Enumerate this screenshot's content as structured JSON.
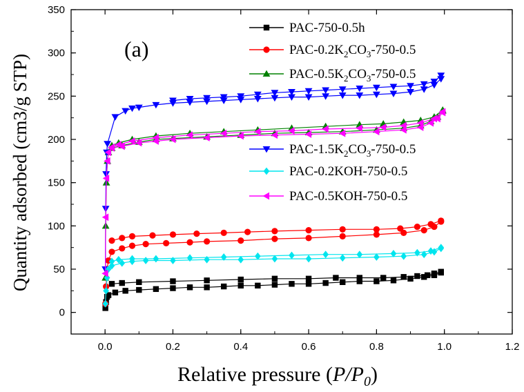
{
  "chart_data": {
    "type": "line",
    "panel_label": "(a)",
    "xlabel": "Relative pressure (P/P0)",
    "xlabel_parts": {
      "main": "Relative pressure (",
      "p": "P",
      "slash": "/",
      "p0": "P",
      "sub": "0",
      "close": ")"
    },
    "ylabel": "Quantity adsorbed (cm3/g STP)",
    "xlim": [
      -0.1,
      1.2
    ],
    "ylim": [
      -25,
      350
    ],
    "xticks": [
      0.0,
      0.2,
      0.4,
      0.6,
      0.8,
      1.0,
      1.2
    ],
    "xtick_labels": [
      "0.0",
      "0.2",
      "0.4",
      "0.6",
      "0.8",
      "1.0",
      "1.2"
    ],
    "yticks": [
      0,
      50,
      100,
      150,
      200,
      250,
      300,
      350
    ],
    "ytick_labels": [
      "0",
      "50",
      "100",
      "150",
      "200",
      "250",
      "300",
      "350"
    ],
    "grid": false,
    "legend_position": "top-right",
    "series": [
      {
        "name": "PAC-750-0.5h",
        "legend_parts": {
          "a": "PAC-750-0.5h"
        },
        "color": "#000000",
        "marker": "square",
        "adsorption": [
          [
            0.001,
            5
          ],
          [
            0.003,
            12
          ],
          [
            0.006,
            18
          ],
          [
            0.01,
            20
          ],
          [
            0.03,
            23
          ],
          [
            0.06,
            25
          ],
          [
            0.1,
            26
          ],
          [
            0.15,
            27
          ],
          [
            0.2,
            28
          ],
          [
            0.25,
            29
          ],
          [
            0.3,
            29
          ],
          [
            0.35,
            30
          ],
          [
            0.4,
            31
          ],
          [
            0.45,
            31
          ],
          [
            0.5,
            32
          ],
          [
            0.55,
            33
          ],
          [
            0.6,
            33
          ],
          [
            0.65,
            34
          ],
          [
            0.7,
            35
          ],
          [
            0.75,
            36
          ],
          [
            0.8,
            36
          ],
          [
            0.85,
            37
          ],
          [
            0.9,
            39
          ],
          [
            0.94,
            41
          ],
          [
            0.97,
            43
          ],
          [
            0.99,
            46
          ]
        ],
        "desorption": [
          [
            0.99,
            47
          ],
          [
            0.97,
            45
          ],
          [
            0.95,
            43
          ],
          [
            0.92,
            42
          ],
          [
            0.88,
            41
          ],
          [
            0.82,
            40
          ],
          [
            0.75,
            40
          ],
          [
            0.68,
            40
          ],
          [
            0.6,
            39
          ],
          [
            0.5,
            39
          ],
          [
            0.4,
            38
          ],
          [
            0.3,
            37
          ],
          [
            0.2,
            36
          ],
          [
            0.1,
            35
          ],
          [
            0.05,
            34
          ],
          [
            0.02,
            33
          ]
        ]
      },
      {
        "name": "PAC-0.2K2CO3-750-0.5",
        "legend_parts": {
          "a": "PAC-0.2K",
          "sub1": "2",
          "b": "CO",
          "sub2": "3",
          "c": "-750-0.5"
        },
        "color": "#ff0000",
        "marker": "circle",
        "adsorption": [
          [
            0.001,
            10
          ],
          [
            0.003,
            30
          ],
          [
            0.006,
            50
          ],
          [
            0.01,
            60
          ],
          [
            0.02,
            70
          ],
          [
            0.05,
            74
          ],
          [
            0.08,
            77
          ],
          [
            0.12,
            79
          ],
          [
            0.18,
            80
          ],
          [
            0.25,
            81
          ],
          [
            0.3,
            82
          ],
          [
            0.4,
            83
          ],
          [
            0.5,
            85
          ],
          [
            0.6,
            86
          ],
          [
            0.7,
            88
          ],
          [
            0.8,
            90
          ],
          [
            0.88,
            92
          ],
          [
            0.94,
            95
          ],
          [
            0.97,
            99
          ],
          [
            0.99,
            105
          ]
        ],
        "desorption": [
          [
            0.99,
            106
          ],
          [
            0.96,
            102
          ],
          [
            0.92,
            99
          ],
          [
            0.87,
            97
          ],
          [
            0.8,
            96
          ],
          [
            0.7,
            96
          ],
          [
            0.6,
            95
          ],
          [
            0.5,
            94
          ],
          [
            0.42,
            93
          ],
          [
            0.35,
            92
          ],
          [
            0.27,
            91
          ],
          [
            0.2,
            90
          ],
          [
            0.14,
            89
          ],
          [
            0.08,
            88
          ],
          [
            0.05,
            86
          ],
          [
            0.02,
            83
          ]
        ]
      },
      {
        "name": "PAC-0.5K2CO3-750-0.5",
        "legend_parts": {
          "a": "PAC-0.5K",
          "sub1": "2",
          "b": "CO",
          "sub2": "3",
          "c": "-750-0.5"
        },
        "color": "#008000",
        "marker": "triangle-up",
        "adsorption": [
          [
            0.001,
            40
          ],
          [
            0.002,
            100
          ],
          [
            0.004,
            150
          ],
          [
            0.007,
            175
          ],
          [
            0.01,
            185
          ],
          [
            0.02,
            190
          ],
          [
            0.05,
            193
          ],
          [
            0.1,
            197
          ],
          [
            0.15,
            200
          ],
          [
            0.2,
            201
          ],
          [
            0.3,
            203
          ],
          [
            0.4,
            205
          ],
          [
            0.5,
            207
          ],
          [
            0.6,
            208
          ],
          [
            0.7,
            209
          ],
          [
            0.8,
            211
          ],
          [
            0.88,
            213
          ],
          [
            0.93,
            216
          ],
          [
            0.96,
            221
          ],
          [
            0.98,
            226
          ],
          [
            0.995,
            233
          ]
        ],
        "desorption": [
          [
            0.995,
            234
          ],
          [
            0.97,
            226
          ],
          [
            0.93,
            222
          ],
          [
            0.88,
            220
          ],
          [
            0.82,
            218
          ],
          [
            0.75,
            217
          ],
          [
            0.65,
            215
          ],
          [
            0.55,
            213
          ],
          [
            0.45,
            211
          ],
          [
            0.35,
            209
          ],
          [
            0.25,
            207
          ],
          [
            0.15,
            204
          ],
          [
            0.08,
            200
          ],
          [
            0.04,
            196
          ],
          [
            0.02,
            193
          ]
        ]
      },
      {
        "name": "PAC-1.5K2CO3-750-0.5",
        "legend_parts": {
          "a": "PAC-1.5K",
          "sub1": "2",
          "b": "CO",
          "sub2": "3",
          "c": "-750-0.5"
        },
        "color": "#0000ff",
        "marker": "triangle-down",
        "adsorption": [
          [
            0.001,
            50
          ],
          [
            0.002,
            120
          ],
          [
            0.003,
            160
          ],
          [
            0.005,
            185
          ],
          [
            0.007,
            195
          ],
          [
            0.03,
            226
          ],
          [
            0.06,
            233
          ],
          [
            0.08,
            236
          ],
          [
            0.1,
            237
          ],
          [
            0.15,
            240
          ],
          [
            0.2,
            242
          ],
          [
            0.25,
            243
          ],
          [
            0.3,
            244
          ],
          [
            0.35,
            245
          ],
          [
            0.4,
            246
          ],
          [
            0.45,
            247
          ],
          [
            0.5,
            248
          ],
          [
            0.55,
            249
          ],
          [
            0.6,
            249
          ],
          [
            0.65,
            250
          ],
          [
            0.7,
            251
          ],
          [
            0.75,
            251
          ],
          [
            0.8,
            252
          ],
          [
            0.85,
            253
          ],
          [
            0.9,
            255
          ],
          [
            0.94,
            258
          ],
          [
            0.97,
            263
          ],
          [
            0.99,
            270
          ]
        ],
        "desorption": [
          [
            0.99,
            274
          ],
          [
            0.97,
            267
          ],
          [
            0.94,
            264
          ],
          [
            0.9,
            262
          ],
          [
            0.85,
            261
          ],
          [
            0.8,
            260
          ],
          [
            0.75,
            259
          ],
          [
            0.7,
            258
          ],
          [
            0.65,
            257
          ],
          [
            0.6,
            256
          ],
          [
            0.55,
            255
          ],
          [
            0.5,
            254
          ],
          [
            0.45,
            252
          ],
          [
            0.4,
            250
          ],
          [
            0.35,
            249
          ],
          [
            0.3,
            248
          ],
          [
            0.25,
            247
          ],
          [
            0.2,
            245
          ]
        ]
      },
      {
        "name": "PAC-0.2KOH-750-0.5",
        "legend_parts": {
          "a": "PAC-0.2KOH-750-0.5"
        },
        "color": "#00e5ee",
        "marker": "diamond",
        "adsorption": [
          [
            0.001,
            10
          ],
          [
            0.003,
            25
          ],
          [
            0.006,
            40
          ],
          [
            0.01,
            50
          ],
          [
            0.02,
            54
          ],
          [
            0.05,
            57
          ],
          [
            0.08,
            59
          ],
          [
            0.12,
            60
          ],
          [
            0.2,
            60
          ],
          [
            0.3,
            61
          ],
          [
            0.4,
            61
          ],
          [
            0.5,
            62
          ],
          [
            0.6,
            62
          ],
          [
            0.7,
            63
          ],
          [
            0.8,
            64
          ],
          [
            0.88,
            65
          ],
          [
            0.94,
            67
          ],
          [
            0.97,
            70
          ],
          [
            0.99,
            74
          ]
        ],
        "desorption": [
          [
            0.99,
            75
          ],
          [
            0.96,
            71
          ],
          [
            0.92,
            69
          ],
          [
            0.85,
            68
          ],
          [
            0.75,
            67
          ],
          [
            0.65,
            67
          ],
          [
            0.55,
            66
          ],
          [
            0.45,
            65
          ],
          [
            0.35,
            64
          ],
          [
            0.25,
            63
          ],
          [
            0.15,
            62
          ],
          [
            0.08,
            62
          ],
          [
            0.04,
            61
          ],
          [
            0.02,
            59
          ]
        ]
      },
      {
        "name": "PAC-0.5KOH-750-0.5",
        "legend_parts": {
          "a": "PAC-0.5KOH-750-0.5"
        },
        "color": "#ff00ff",
        "marker": "triangle-left",
        "adsorption": [
          [
            0.001,
            45
          ],
          [
            0.002,
            110
          ],
          [
            0.004,
            155
          ],
          [
            0.007,
            175
          ],
          [
            0.01,
            185
          ],
          [
            0.02,
            190
          ],
          [
            0.05,
            192
          ],
          [
            0.1,
            196
          ],
          [
            0.15,
            198
          ],
          [
            0.2,
            200
          ],
          [
            0.3,
            202
          ],
          [
            0.4,
            204
          ],
          [
            0.5,
            205
          ],
          [
            0.6,
            206
          ],
          [
            0.7,
            207
          ],
          [
            0.8,
            209
          ],
          [
            0.88,
            211
          ],
          [
            0.93,
            214
          ],
          [
            0.96,
            219
          ],
          [
            0.98,
            224
          ],
          [
            0.995,
            231
          ]
        ],
        "desorption": [
          [
            0.995,
            232
          ],
          [
            0.97,
            224
          ],
          [
            0.93,
            219
          ],
          [
            0.88,
            216
          ],
          [
            0.82,
            214
          ],
          [
            0.75,
            213
          ],
          [
            0.65,
            212
          ],
          [
            0.55,
            210
          ],
          [
            0.45,
            209
          ],
          [
            0.35,
            207
          ],
          [
            0.25,
            205
          ],
          [
            0.15,
            202
          ],
          [
            0.08,
            198
          ],
          [
            0.04,
            194
          ],
          [
            0.02,
            191
          ]
        ]
      }
    ]
  }
}
